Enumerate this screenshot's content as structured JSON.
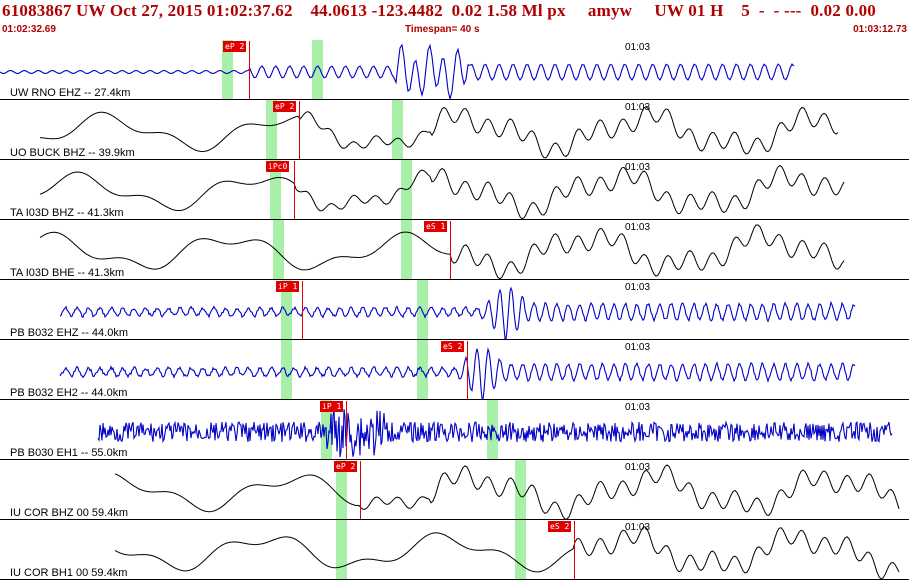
{
  "header": {
    "title": "61083867 UW Oct 27, 2015 01:02:37.62    44.0613 -123.4482  0.02 1.58 Ml px     amyw     UW 01 H    5  -  - ---  0.02 0.00",
    "start_time": "01:02:32.69",
    "timespan": "Timespan=  40 s",
    "end_time": "01:03:12.73"
  },
  "time_mark": "01:03",
  "traces": [
    {
      "label": "UW RNO EHZ -- 27.4km",
      "color": "#0000c8",
      "picks": [
        "eP 2"
      ]
    },
    {
      "label": "UO BUCK BHZ -- 39.9km",
      "color": "#000000",
      "picks": [
        "eP 2"
      ]
    },
    {
      "label": "TA I03D BHZ -- 41.3km",
      "color": "#000000",
      "picks": [
        "iPc0"
      ]
    },
    {
      "label": "TA I03D BHE -- 41.3km",
      "color": "#000000",
      "picks": [
        "eS 1"
      ]
    },
    {
      "label": "PB B032 EHZ -- 44.0km",
      "color": "#0000c8",
      "picks": [
        "iP 1"
      ]
    },
    {
      "label": "PB B032 EH2 -- 44.0km",
      "color": "#0000c8",
      "picks": [
        "eS 2"
      ]
    },
    {
      "label": "PB B030 EH1 -- 55.0km",
      "color": "#0000c8",
      "picks": [
        "iP 1"
      ]
    },
    {
      "label": "IU COR BHZ 00 59.4km",
      "color": "#000000",
      "picks": [
        "eP 2"
      ]
    },
    {
      "label": "IU COR BH1 00 59.4km",
      "color": "#000000",
      "picks": [
        "eS 2"
      ]
    }
  ]
}
